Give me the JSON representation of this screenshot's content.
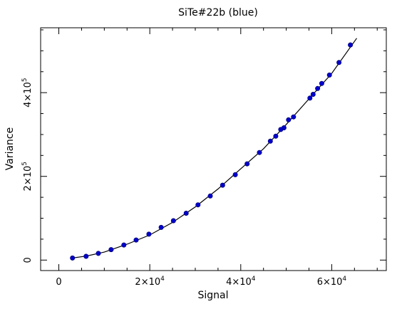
{
  "chart_data": {
    "type": "scatter",
    "title": "SiTe#22b (blue)",
    "xlabel": "Signal",
    "ylabel": "Variance",
    "xlim": [
      -4000,
      72000
    ],
    "ylim": [
      -25000,
      555000
    ],
    "grid": false,
    "legend": "none",
    "point_color": "#0000cc",
    "line_color": "#000000",
    "x_ticks": [
      {
        "value": 0,
        "mantissa": "0",
        "exponent": ""
      },
      {
        "value": 20000,
        "mantissa": "2×10",
        "exponent": "4"
      },
      {
        "value": 40000,
        "mantissa": "4×10",
        "exponent": "4"
      },
      {
        "value": 60000,
        "mantissa": "6×10",
        "exponent": "4"
      }
    ],
    "y_ticks": [
      {
        "value": 0,
        "mantissa": "0",
        "exponent": ""
      },
      {
        "value": 200000,
        "mantissa": "2×10",
        "exponent": "5"
      },
      {
        "value": 400000,
        "mantissa": "4×10",
        "exponent": "5"
      }
    ],
    "points": {
      "x": [
        3000,
        6000,
        8700,
        11500,
        14300,
        17000,
        19800,
        22500,
        25200,
        28000,
        30600,
        33300,
        36000,
        38800,
        41400,
        44100,
        46500,
        47700,
        48800,
        49500,
        50500,
        51600,
        55200,
        55900,
        56900,
        57800,
        59500,
        61600,
        64100
      ],
      "y": [
        5000,
        9000,
        16000,
        25000,
        36000,
        48000,
        62000,
        78000,
        94000,
        112000,
        132000,
        153000,
        179000,
        204000,
        230000,
        257000,
        284000,
        296000,
        312000,
        316000,
        335000,
        342000,
        387000,
        396000,
        410000,
        422000,
        442000,
        472000,
        514000
      ]
    },
    "fit": {
      "x": [
        3000,
        6000,
        10000,
        15000,
        20000,
        25000,
        30000,
        35000,
        40000,
        45000,
        50000,
        55000,
        60000,
        65500
      ],
      "y": [
        5000,
        9500,
        19000,
        38000,
        60000,
        90000,
        127000,
        170000,
        218000,
        266000,
        324000,
        385000,
        446000,
        530000
      ]
    }
  }
}
